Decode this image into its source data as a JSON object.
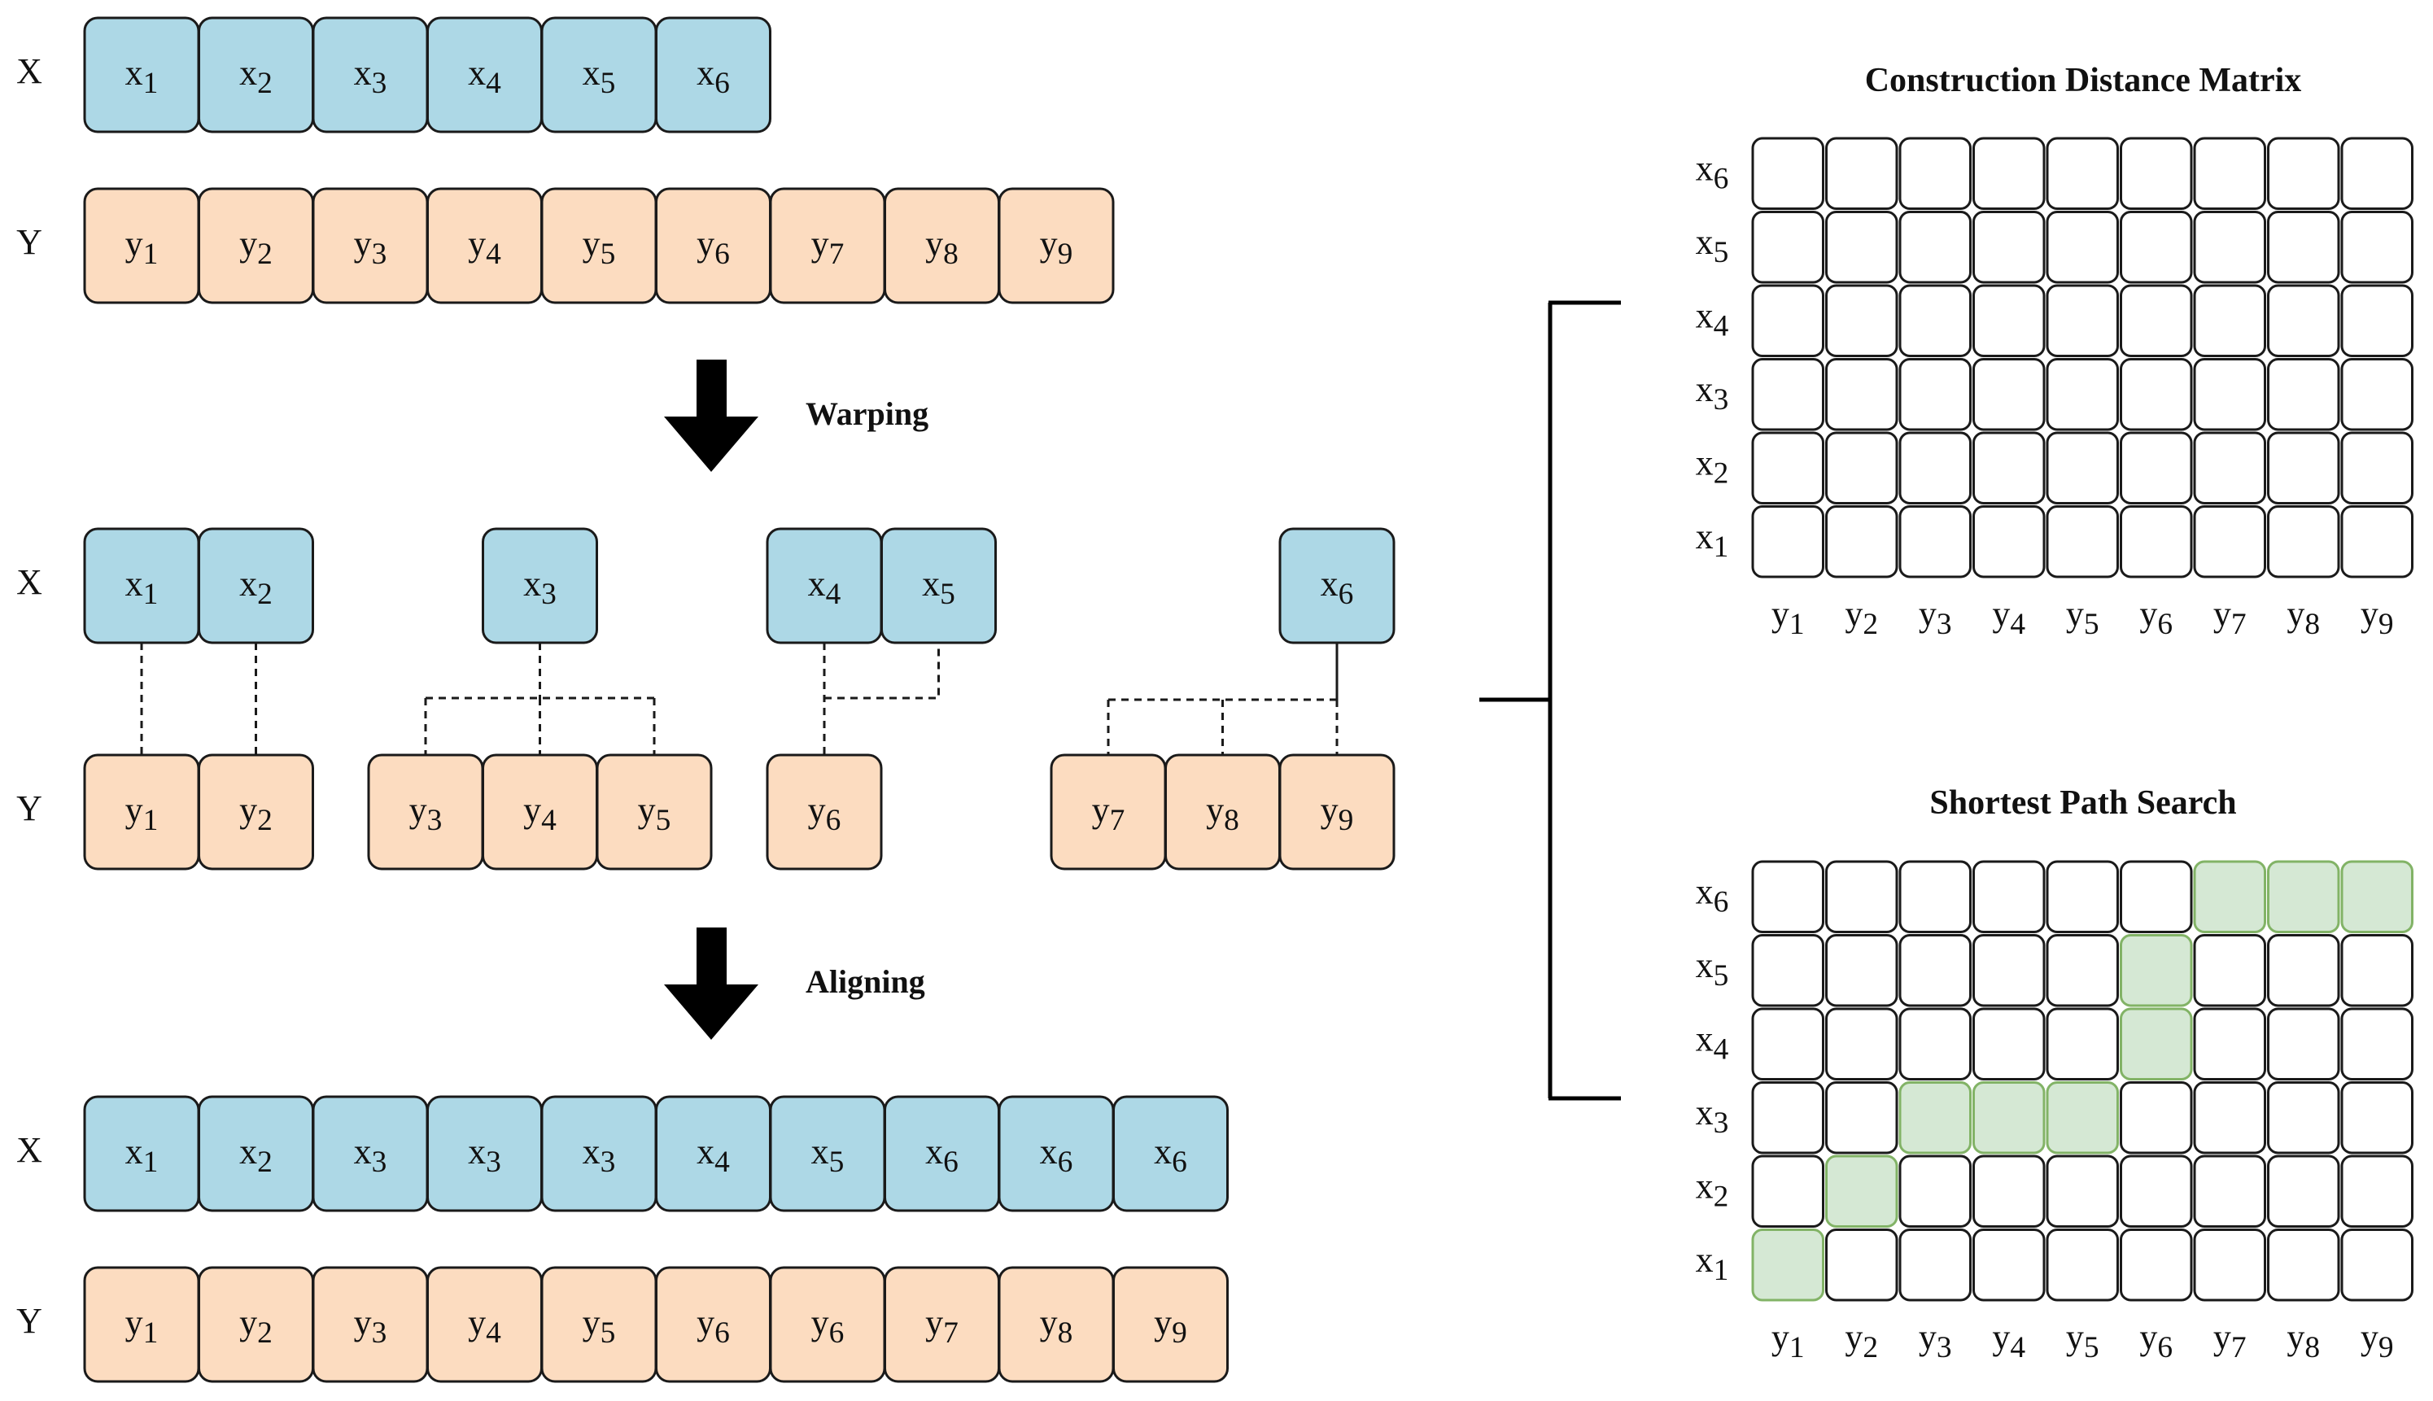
{
  "colors": {
    "x_fill": "#add8e6",
    "y_fill": "#fcdcc0",
    "stroke": "#1a1a1a",
    "path_fill": "#d5e8d4",
    "path_stroke": "#82b366"
  },
  "row_labels": {
    "x": "X",
    "y": "Y"
  },
  "original": {
    "x": [
      "x1",
      "x2",
      "x3",
      "x4",
      "x5",
      "x6"
    ],
    "y": [
      "y1",
      "y2",
      "y3",
      "y4",
      "y5",
      "y6",
      "y7",
      "y8",
      "y9"
    ]
  },
  "warping": {
    "label": "Warping",
    "groups": [
      {
        "x": [
          "x1"
        ],
        "y": [
          "y1"
        ]
      },
      {
        "x": [
          "x2"
        ],
        "y": [
          "y2"
        ]
      },
      {
        "x": [
          "x3"
        ],
        "y": [
          "y3",
          "y4",
          "y5"
        ]
      },
      {
        "x": [
          "x4"
        ],
        "y": [
          "y6"
        ]
      },
      {
        "x": [
          "x5"
        ],
        "y": [
          "y6"
        ]
      },
      {
        "x": [
          "x6"
        ],
        "y": [
          "y7",
          "y8",
          "y9"
        ]
      }
    ]
  },
  "aligning": {
    "label": "Aligning",
    "x": [
      "x1",
      "x2",
      "x3",
      "x3",
      "x3",
      "x4",
      "x5",
      "x6",
      "x6",
      "x6"
    ],
    "y": [
      "y1",
      "y2",
      "y3",
      "y4",
      "y5",
      "y6",
      "y6",
      "y7",
      "y8",
      "y9"
    ]
  },
  "distance_matrix": {
    "title": "Construction Distance Matrix",
    "rows_top_to_bottom": [
      "x6",
      "x5",
      "x4",
      "x3",
      "x2",
      "x1"
    ],
    "cols": [
      "y1",
      "y2",
      "y3",
      "y4",
      "y5",
      "y6",
      "y7",
      "y8",
      "y9"
    ]
  },
  "shortest_path": {
    "title": "Shortest Path Search",
    "rows_top_to_bottom": [
      "x6",
      "x5",
      "x4",
      "x3",
      "x2",
      "x1"
    ],
    "cols": [
      "y1",
      "y2",
      "y3",
      "y4",
      "y5",
      "y6",
      "y7",
      "y8",
      "y9"
    ],
    "path": [
      {
        "x": "x1",
        "y": "y1"
      },
      {
        "x": "x2",
        "y": "y2"
      },
      {
        "x": "x3",
        "y": "y3"
      },
      {
        "x": "x3",
        "y": "y4"
      },
      {
        "x": "x3",
        "y": "y5"
      },
      {
        "x": "x4",
        "y": "y6"
      },
      {
        "x": "x5",
        "y": "y6"
      },
      {
        "x": "x6",
        "y": "y7"
      },
      {
        "x": "x6",
        "y": "y8"
      },
      {
        "x": "x6",
        "y": "y9"
      }
    ]
  }
}
